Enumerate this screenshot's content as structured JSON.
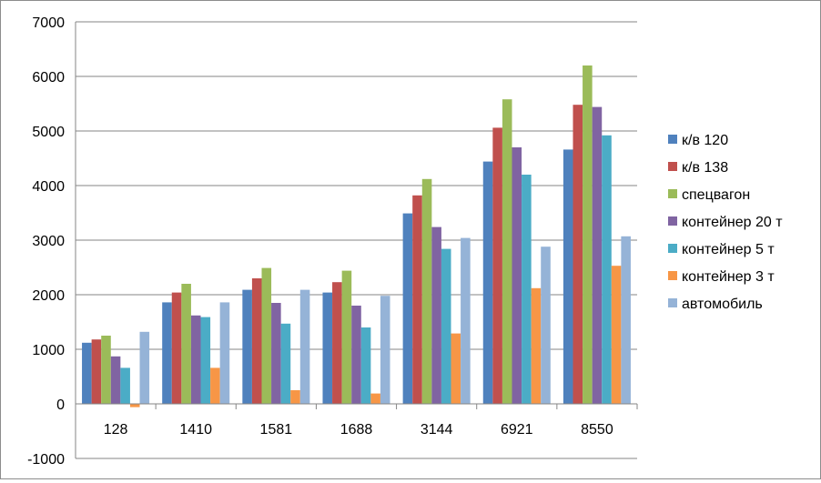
{
  "chart_data": {
    "type": "bar",
    "title": "",
    "xlabel": "",
    "ylabel": "",
    "ylim": [
      -1000,
      7000
    ],
    "yticks": [
      -1000,
      0,
      1000,
      2000,
      3000,
      4000,
      5000,
      6000,
      7000
    ],
    "grid": "horizontal",
    "legend_position": "right",
    "categories": [
      "128",
      "1410",
      "1581",
      "1688",
      "3144",
      "6921",
      "8550"
    ],
    "series": [
      {
        "name": "к/в 120",
        "color": "#4f81bd",
        "values": [
          1120,
          1860,
          2090,
          2040,
          3490,
          4440,
          4660
        ]
      },
      {
        "name": "к/в 138",
        "color": "#c0504d",
        "values": [
          1180,
          2040,
          2300,
          2230,
          3820,
          5060,
          5480
        ]
      },
      {
        "name": "спецвагон",
        "color": "#9bbb59",
        "values": [
          1250,
          2200,
          2490,
          2440,
          4120,
          5580,
          6200
        ]
      },
      {
        "name": "контейнер 20 т",
        "color": "#8064a2",
        "values": [
          870,
          1620,
          1850,
          1800,
          3240,
          4700,
          5440
        ]
      },
      {
        "name": "контейнер 5 т",
        "color": "#4bacc6",
        "values": [
          660,
          1590,
          1470,
          1400,
          2840,
          4200,
          4920
        ]
      },
      {
        "name": "контейнер 3 т",
        "color": "#f79646",
        "values": [
          -60,
          660,
          250,
          190,
          1290,
          2120,
          2530
        ]
      },
      {
        "name": "автомобиль",
        "color": "#95b3d7",
        "values": [
          1320,
          1860,
          2090,
          1980,
          3040,
          2880,
          3070
        ]
      }
    ]
  }
}
